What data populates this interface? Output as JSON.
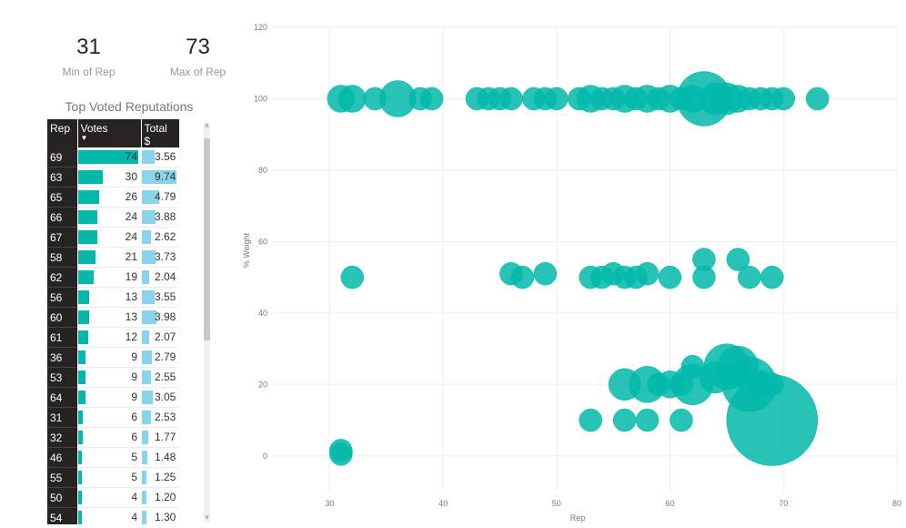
{
  "cards": {
    "min": {
      "value": "31",
      "label": "Min of Rep"
    },
    "max": {
      "value": "73",
      "label": "Max of Rep"
    }
  },
  "table": {
    "title": "Top Voted Reputations",
    "headers": [
      "Rep",
      "Votes",
      "Total $"
    ],
    "rows": [
      {
        "rep": "69",
        "votes": 74,
        "total": "3.56"
      },
      {
        "rep": "63",
        "votes": 30,
        "total": "9.74"
      },
      {
        "rep": "65",
        "votes": 26,
        "total": "4.79"
      },
      {
        "rep": "66",
        "votes": 24,
        "total": "3.88"
      },
      {
        "rep": "67",
        "votes": 24,
        "total": "2.62"
      },
      {
        "rep": "58",
        "votes": 21,
        "total": "3.73"
      },
      {
        "rep": "62",
        "votes": 19,
        "total": "2.04"
      },
      {
        "rep": "56",
        "votes": 13,
        "total": "3.55"
      },
      {
        "rep": "60",
        "votes": 13,
        "total": "3.98"
      },
      {
        "rep": "61",
        "votes": 12,
        "total": "2.07"
      },
      {
        "rep": "36",
        "votes": 9,
        "total": "2.79"
      },
      {
        "rep": "53",
        "votes": 9,
        "total": "2.55"
      },
      {
        "rep": "64",
        "votes": 9,
        "total": "3.05"
      },
      {
        "rep": "31",
        "votes": 6,
        "total": "2.53"
      },
      {
        "rep": "32",
        "votes": 6,
        "total": "1.77"
      },
      {
        "rep": "46",
        "votes": 5,
        "total": "1.48"
      },
      {
        "rep": "55",
        "votes": 5,
        "total": "1.25"
      },
      {
        "rep": "50",
        "votes": 4,
        "total": "1.20"
      },
      {
        "rep": "54",
        "votes": 4,
        "total": "1.30"
      }
    ]
  },
  "colors": {
    "accent": "#01b8aa",
    "bar_total": "#8ad4eb",
    "header_bg": "#252423"
  },
  "chart_data": {
    "type": "scatter",
    "xlabel": "Rep",
    "ylabel": "% Weight",
    "xlim": [
      25,
      80
    ],
    "ylim": [
      -10,
      120
    ],
    "xticks": [
      30,
      40,
      50,
      60,
      70,
      80
    ],
    "yticks": [
      0,
      20,
      40,
      60,
      80,
      100,
      120
    ],
    "grid": true,
    "points": [
      {
        "x": 31,
        "y": 100,
        "r": 1.2
      },
      {
        "x": 32,
        "y": 100,
        "r": 1.2
      },
      {
        "x": 34,
        "y": 100,
        "r": 1
      },
      {
        "x": 36,
        "y": 100,
        "r": 1.6
      },
      {
        "x": 38,
        "y": 100,
        "r": 1
      },
      {
        "x": 39,
        "y": 100,
        "r": 1
      },
      {
        "x": 43,
        "y": 100,
        "r": 1
      },
      {
        "x": 44,
        "y": 100,
        "r": 1
      },
      {
        "x": 45,
        "y": 100,
        "r": 1
      },
      {
        "x": 46,
        "y": 100,
        "r": 1
      },
      {
        "x": 48,
        "y": 100,
        "r": 1
      },
      {
        "x": 49,
        "y": 100,
        "r": 1
      },
      {
        "x": 50,
        "y": 100,
        "r": 1
      },
      {
        "x": 52,
        "y": 100,
        "r": 1
      },
      {
        "x": 53,
        "y": 100,
        "r": 1.2
      },
      {
        "x": 54,
        "y": 100,
        "r": 1
      },
      {
        "x": 55,
        "y": 100,
        "r": 1
      },
      {
        "x": 56,
        "y": 100,
        "r": 1.2
      },
      {
        "x": 57,
        "y": 100,
        "r": 1
      },
      {
        "x": 58,
        "y": 100,
        "r": 1.2
      },
      {
        "x": 59,
        "y": 100,
        "r": 1
      },
      {
        "x": 60,
        "y": 100,
        "r": 1.2
      },
      {
        "x": 61,
        "y": 100,
        "r": 1
      },
      {
        "x": 62,
        "y": 100,
        "r": 1.2
      },
      {
        "x": 63,
        "y": 100,
        "r": 2.4
      },
      {
        "x": 64,
        "y": 100,
        "r": 1.4
      },
      {
        "x": 65,
        "y": 100,
        "r": 1.4
      },
      {
        "x": 66,
        "y": 100,
        "r": 1.2
      },
      {
        "x": 67,
        "y": 100,
        "r": 1
      },
      {
        "x": 68,
        "y": 100,
        "r": 1
      },
      {
        "x": 69,
        "y": 100,
        "r": 1
      },
      {
        "x": 70,
        "y": 100,
        "r": 1
      },
      {
        "x": 73,
        "y": 100,
        "r": 1
      },
      {
        "x": 32,
        "y": 50,
        "r": 1
      },
      {
        "x": 46,
        "y": 51,
        "r": 1
      },
      {
        "x": 47,
        "y": 50,
        "r": 1
      },
      {
        "x": 49,
        "y": 51,
        "r": 1
      },
      {
        "x": 53,
        "y": 50,
        "r": 1
      },
      {
        "x": 54,
        "y": 50,
        "r": 1
      },
      {
        "x": 55,
        "y": 51,
        "r": 1
      },
      {
        "x": 56,
        "y": 50,
        "r": 1
      },
      {
        "x": 57,
        "y": 50,
        "r": 1
      },
      {
        "x": 58,
        "y": 51,
        "r": 1
      },
      {
        "x": 60,
        "y": 50,
        "r": 1
      },
      {
        "x": 63,
        "y": 50,
        "r": 1
      },
      {
        "x": 63,
        "y": 55,
        "r": 1
      },
      {
        "x": 66,
        "y": 55,
        "r": 1
      },
      {
        "x": 67,
        "y": 50,
        "r": 1
      },
      {
        "x": 69,
        "y": 50,
        "r": 1
      },
      {
        "x": 31,
        "y": 0.5,
        "r": 1
      },
      {
        "x": 31,
        "y": 1.5,
        "r": 1
      },
      {
        "x": 53,
        "y": 10,
        "r": 1
      },
      {
        "x": 56,
        "y": 10,
        "r": 1
      },
      {
        "x": 58,
        "y": 10,
        "r": 1
      },
      {
        "x": 61,
        "y": 10,
        "r": 1
      },
      {
        "x": 69,
        "y": 10,
        "r": 4
      },
      {
        "x": 56,
        "y": 20,
        "r": 1.4
      },
      {
        "x": 58,
        "y": 20,
        "r": 1.6
      },
      {
        "x": 59,
        "y": 20,
        "r": 1
      },
      {
        "x": 60,
        "y": 20,
        "r": 1.2
      },
      {
        "x": 61,
        "y": 20,
        "r": 1
      },
      {
        "x": 62,
        "y": 20,
        "r": 1.8
      },
      {
        "x": 62,
        "y": 25,
        "r": 1
      },
      {
        "x": 64,
        "y": 22,
        "r": 1.4
      },
      {
        "x": 65,
        "y": 25,
        "r": 2
      },
      {
        "x": 66,
        "y": 25,
        "r": 1.8
      },
      {
        "x": 67,
        "y": 20,
        "r": 2.4
      },
      {
        "x": 68,
        "y": 20,
        "r": 1.2
      },
      {
        "x": 69,
        "y": 20,
        "r": 1
      }
    ]
  }
}
